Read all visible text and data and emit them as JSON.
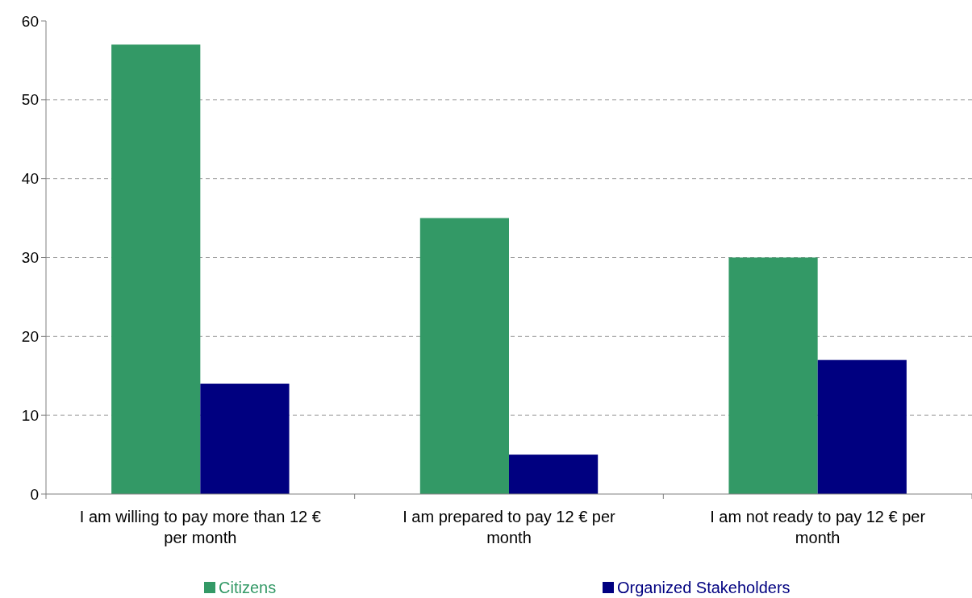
{
  "chart_data": {
    "type": "bar",
    "categories": [
      "I am willing to pay more than 12 € per month",
      "I am prepared to pay 12 € per month",
      "I am not ready to pay 12 € per month"
    ],
    "series": [
      {
        "name": "Citizens",
        "color": "#339966",
        "values": [
          57,
          35,
          30
        ]
      },
      {
        "name": "Organized Stakeholders",
        "color": "#000080",
        "values": [
          14,
          5,
          17
        ]
      }
    ],
    "ylim": [
      0,
      60
    ],
    "yticks": [
      0,
      10,
      20,
      30,
      40,
      50,
      60
    ],
    "grid": "y",
    "legend": "bottom"
  }
}
